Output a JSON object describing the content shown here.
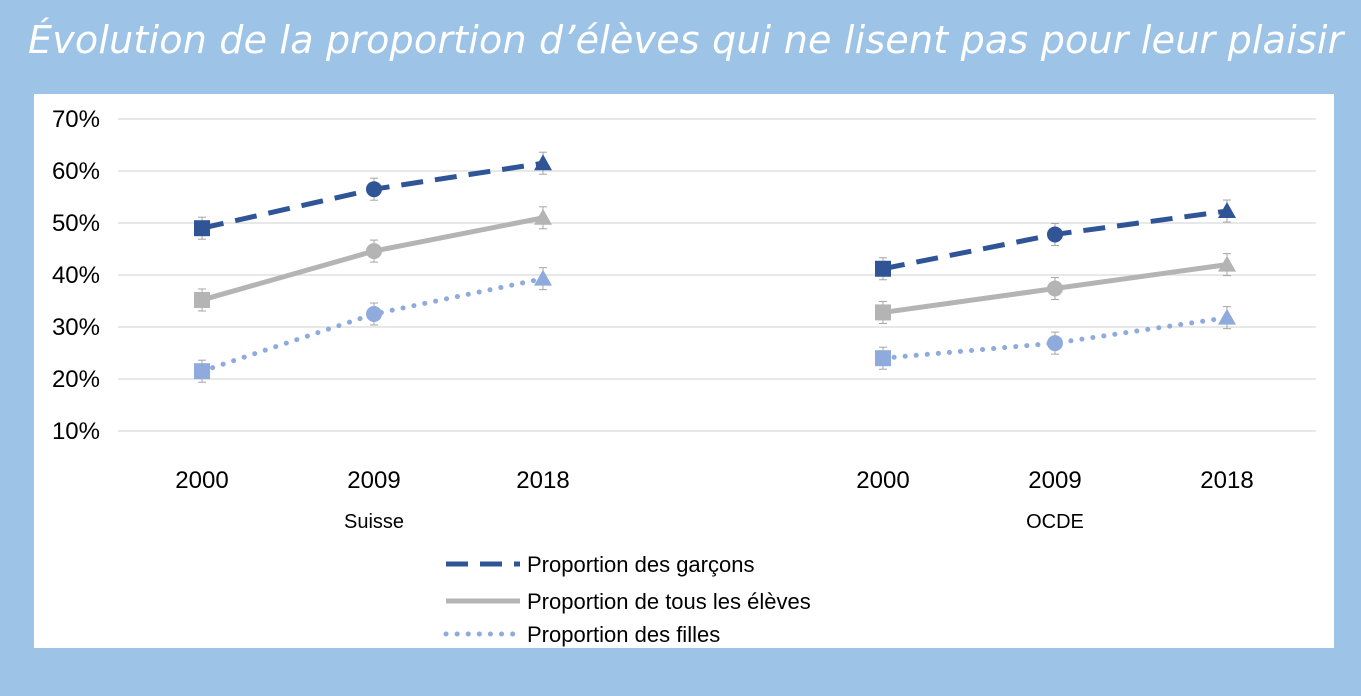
{
  "title": "Évolution de la proportion d’élèves qui ne lisent pas pour leur plaisir",
  "colors": {
    "background": "#9dc3e6",
    "boys": "#2f5597",
    "all": "#b4b4b4",
    "girls": "#8faadc"
  },
  "chart_data": {
    "type": "line",
    "ylim": [
      10,
      70
    ],
    "yticks": [
      "10%",
      "20%",
      "30%",
      "40%",
      "50%",
      "60%",
      "70%"
    ],
    "grid": true,
    "error_bars": true,
    "legend_position": "bottom",
    "groups": [
      {
        "name": "Suisse",
        "years": [
          "2000",
          "2009",
          "2018"
        ]
      },
      {
        "name": "OCDE",
        "years": [
          "2000",
          "2009",
          "2018"
        ]
      }
    ],
    "series": [
      {
        "name": "Proportion des garçons",
        "style": "dashed",
        "color": "#2f5597",
        "markers": [
          "square",
          "circle",
          "triangle"
        ],
        "values": {
          "Suisse": [
            49,
            56.5,
            61.5
          ],
          "OCDE": [
            41.2,
            47.8,
            52.3
          ]
        }
      },
      {
        "name": "Proportion de tous les élèves",
        "style": "solid",
        "color": "#b4b4b4",
        "markers": [
          "square",
          "circle",
          "triangle"
        ],
        "values": {
          "Suisse": [
            35.2,
            44.6,
            51
          ],
          "OCDE": [
            32.8,
            37.4,
            42
          ]
        }
      },
      {
        "name": "Proportion des filles",
        "style": "dotted",
        "color": "#8faadc",
        "markers": [
          "square",
          "circle",
          "triangle"
        ],
        "values": {
          "Suisse": [
            21.5,
            32.5,
            39.3
          ],
          "OCDE": [
            24,
            26.9,
            31.8
          ]
        }
      }
    ]
  }
}
